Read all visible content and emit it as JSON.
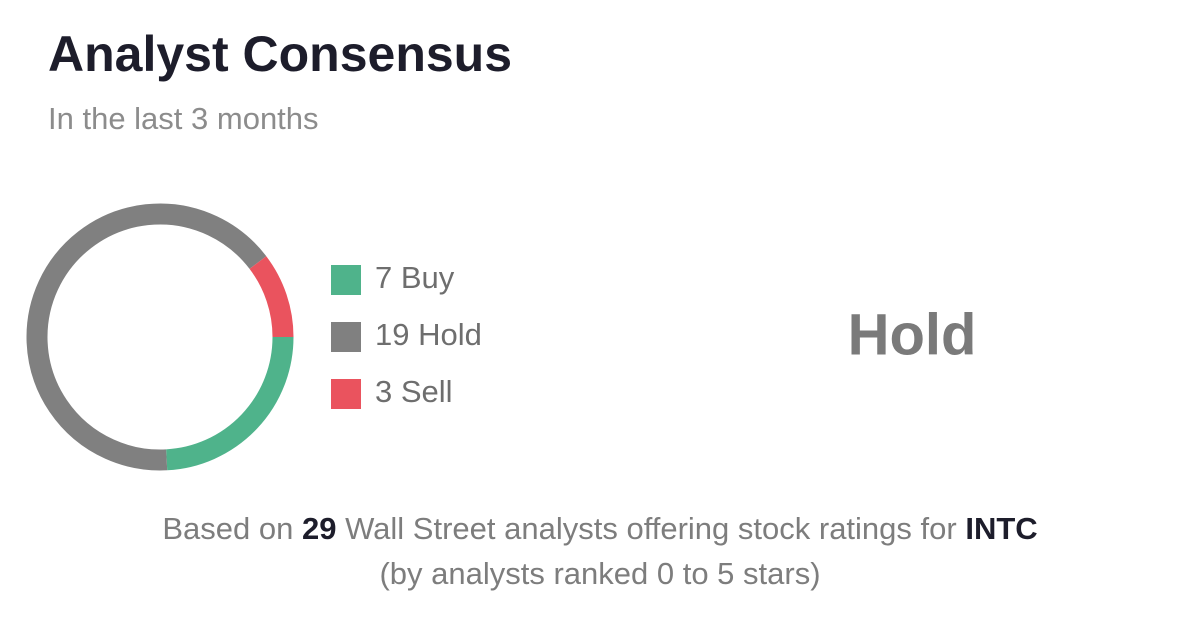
{
  "chart_data": {
    "type": "donut",
    "title": "Analyst Consensus",
    "subtitle": "In the last 3 months",
    "categories": [
      "Buy",
      "Hold",
      "Sell"
    ],
    "values": [
      7,
      19,
      3
    ],
    "colors": [
      "#4fb38b",
      "#808080",
      "#ea535e"
    ],
    "consensus": "Hold",
    "footer": {
      "prefix": "Based on",
      "count": 29,
      "middle": "Wall Street analysts offering stock ratings for",
      "ticker": "INTC",
      "note": "(by analysts ranked 0 to 5 stars)"
    }
  }
}
